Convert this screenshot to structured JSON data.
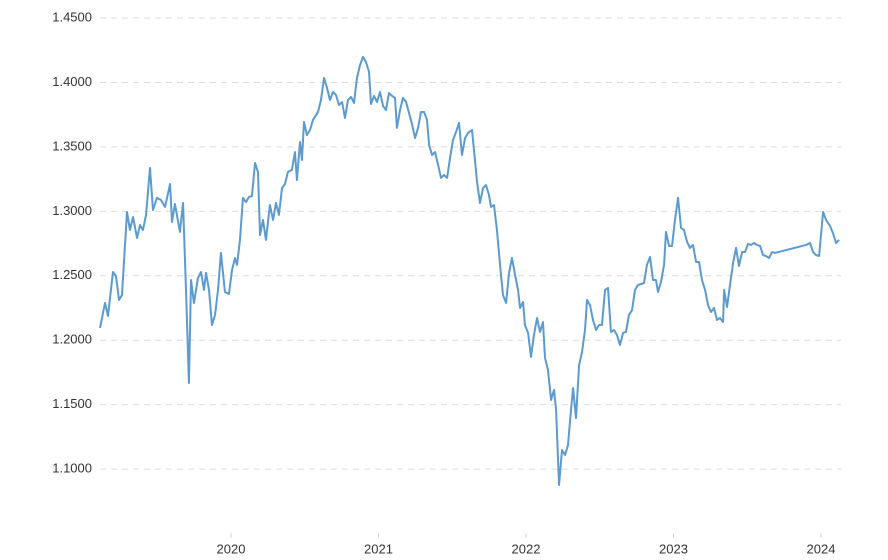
{
  "chart_data": {
    "type": "line",
    "xlim": [
      2019.112,
      2024.122
    ],
    "xticks": [
      2020,
      2021,
      2022,
      2023,
      2024
    ],
    "ylim": [
      1.05,
      1.45
    ],
    "yticks": [
      {
        "value": 1.1,
        "label": "1.1000"
      },
      {
        "value": 1.15,
        "label": "1.1500"
      },
      {
        "value": 1.2,
        "label": "1.2000"
      },
      {
        "value": 1.25,
        "label": "1.2500"
      },
      {
        "value": 1.3,
        "label": "1.3000"
      },
      {
        "value": 1.35,
        "label": "1.3500"
      },
      {
        "value": 1.4,
        "label": "1.4000"
      },
      {
        "value": 1.45,
        "label": "1.4500"
      }
    ],
    "grid": true,
    "color": "#5b9bd0",
    "x": [
      2019.112,
      2019.146,
      2019.166,
      2019.2,
      2019.22,
      2019.241,
      2019.261,
      2019.295,
      2019.315,
      2019.336,
      2019.363,
      2019.383,
      2019.403,
      2019.424,
      2019.451,
      2019.471,
      2019.498,
      2019.525,
      2019.553,
      2019.587,
      2019.6,
      2019.62,
      2019.654,
      2019.675,
      2019.695,
      2019.715,
      2019.729,
      2019.749,
      2019.776,
      2019.797,
      2019.817,
      2019.831,
      2019.851,
      2019.871,
      2019.892,
      2019.912,
      2019.932,
      2019.959,
      2019.986,
      2020.007,
      2020.027,
      2020.041,
      2020.061,
      2020.081,
      2020.102,
      2020.122,
      2020.142,
      2020.163,
      2020.183,
      2020.197,
      2020.217,
      2020.237,
      2020.264,
      2020.285,
      2020.305,
      2020.325,
      2020.346,
      2020.366,
      2020.386,
      2020.413,
      2020.434,
      2020.447,
      2020.468,
      2020.481,
      2020.495,
      2020.515,
      2020.536,
      2020.556,
      2020.59,
      2020.61,
      2020.631,
      2020.651,
      2020.671,
      2020.692,
      2020.712,
      2020.732,
      2020.753,
      2020.773,
      2020.793,
      2020.814,
      2020.834,
      2020.854,
      2020.875,
      2020.895,
      2020.915,
      2020.936,
      2020.949,
      2020.97,
      2020.99,
      2021.01,
      2021.031,
      2021.051,
      2021.071,
      2021.092,
      2021.112,
      2021.125,
      2021.146,
      2021.166,
      2021.187,
      2021.207,
      2021.227,
      2021.248,
      2021.268,
      2021.288,
      2021.309,
      2021.329,
      2021.343,
      2021.363,
      2021.383,
      2021.404,
      2021.424,
      2021.444,
      2021.465,
      2021.485,
      2021.505,
      2021.526,
      2021.546,
      2021.566,
      2021.587,
      2021.607,
      2021.634,
      2021.654,
      2021.668,
      2021.688,
      2021.709,
      2021.729,
      2021.749,
      2021.763,
      2021.783,
      2021.803,
      2021.824,
      2021.844,
      2021.865,
      2021.885,
      2021.905,
      2021.926,
      2021.946,
      2021.96,
      2021.98,
      2021.993,
      2022.014,
      2022.034,
      2022.054,
      2022.075,
      2022.095,
      2022.115,
      2022.129,
      2022.149,
      2022.17,
      2022.19,
      2022.204,
      2022.224,
      2022.244,
      2022.265,
      2022.285,
      2022.299,
      2022.319,
      2022.339,
      2022.36,
      2022.38,
      2022.4,
      2022.414,
      2022.434,
      2022.454,
      2022.475,
      2022.495,
      2022.515,
      2022.536,
      2022.556,
      2022.576,
      2022.597,
      2022.617,
      2022.637,
      2022.658,
      2022.678,
      2022.698,
      2022.719,
      2022.739,
      2022.759,
      2022.78,
      2022.8,
      2022.82,
      2022.841,
      2022.861,
      2022.881,
      2022.895,
      2022.915,
      2022.936,
      2022.949,
      2022.97,
      2022.99,
      2023.01,
      2023.031,
      2023.051,
      2023.071,
      2023.092,
      2023.112,
      2023.132,
      2023.153,
      2023.173,
      2023.193,
      2023.214,
      2023.234,
      2023.254,
      2023.275,
      2023.295,
      2023.315,
      2023.336,
      2023.343,
      2023.363,
      2023.383,
      2023.404,
      2023.424,
      2023.444,
      2023.465,
      2023.485,
      2023.505,
      2023.526,
      2023.546,
      2023.566,
      2023.587,
      2023.607,
      2023.627,
      2023.648,
      2023.668,
      2023.688,
      2023.899,
      2023.926,
      2023.946,
      2023.966,
      2023.987,
      2024.014,
      2024.034,
      2024.061,
      2024.081,
      2024.102,
      2024.122
    ],
    "values": [
      1.2095,
      1.2289,
      1.2188,
      1.2529,
      1.2498,
      1.2312,
      1.2351,
      1.2995,
      1.2855,
      1.2956,
      1.2793,
      1.2894,
      1.2855,
      1.2972,
      1.3336,
      1.301,
      1.3104,
      1.3088,
      1.3034,
      1.3212,
      1.2917,
      1.3057,
      1.284,
      1.3065,
      1.239,
      1.1668,
      1.2467,
      1.2289,
      1.2483,
      1.2529,
      1.239,
      1.2522,
      1.239,
      1.2118,
      1.2196,
      1.239,
      1.2677,
      1.2374,
      1.2359,
      1.2545,
      1.2638,
      1.2584,
      1.2778,
      1.3104,
      1.3072,
      1.3111,
      1.3119,
      1.3375,
      1.3305,
      1.2816,
      1.2933,
      1.2778,
      1.3049,
      1.2933,
      1.3065,
      1.2972,
      1.3181,
      1.3212,
      1.3305,
      1.3321,
      1.346,
      1.3243,
      1.3538,
      1.3398,
      1.3693,
      1.3592,
      1.3631,
      1.3709,
      1.3771,
      1.3864,
      1.4035,
      1.3957,
      1.3864,
      1.3926,
      1.3903,
      1.3825,
      1.3848,
      1.3724,
      1.3864,
      1.3887,
      1.3841,
      1.4035,
      1.4136,
      1.4198,
      1.4159,
      1.4081,
      1.3833,
      1.3895,
      1.3848,
      1.3926,
      1.3817,
      1.3786,
      1.3918,
      1.3895,
      1.388,
      1.3647,
      1.3786,
      1.388,
      1.3848,
      1.3763,
      1.3678,
      1.3569,
      1.3647,
      1.3771,
      1.3771,
      1.3709,
      1.3515,
      1.3437,
      1.346,
      1.336,
      1.3259,
      1.3282,
      1.3259,
      1.3414,
      1.3554,
      1.3616,
      1.3686,
      1.3437,
      1.3569,
      1.3608,
      1.3631,
      1.3398,
      1.3228,
      1.3065,
      1.3181,
      1.3204,
      1.3127,
      1.3034,
      1.3049,
      1.2855,
      1.2584,
      1.2351,
      1.2289,
      1.2522,
      1.2638,
      1.2506,
      1.239,
      1.225,
      1.2296,
      1.2118,
      1.2056,
      1.187,
      1.204,
      1.2172,
      1.2064,
      1.2141,
      1.1862,
      1.1769,
      1.1536,
      1.1614,
      1.1458,
      1.0876,
      1.1148,
      1.1109,
      1.1187,
      1.1381,
      1.1629,
      1.1396,
      1.1808,
      1.1908,
      1.2079,
      1.2312,
      1.2273,
      1.2157,
      1.2079,
      1.2118,
      1.2118,
      1.239,
      1.2405,
      1.2064,
      1.2079,
      1.204,
      1.1963,
      1.2056,
      1.2064,
      1.2196,
      1.2234,
      1.239,
      1.2428,
      1.2436,
      1.2444,
      1.2584,
      1.2646,
      1.2467,
      1.2467,
      1.2374,
      1.2452,
      1.2584,
      1.284,
      1.2731,
      1.2731,
      1.2933,
      1.3104,
      1.2871,
      1.2855,
      1.2762,
      1.2716,
      1.2739,
      1.2607,
      1.2607,
      1.2467,
      1.239,
      1.2273,
      1.2219,
      1.225,
      1.2157,
      1.2172,
      1.2141,
      1.239,
      1.2258,
      1.2428,
      1.2599,
      1.2716,
      1.2576,
      1.2684,
      1.2684,
      1.2747,
      1.2739,
      1.2754,
      1.2739,
      1.2731,
      1.2661,
      1.2653,
      1.2638,
      1.2684,
      1.2677,
      1.2739,
      1.2754,
      1.2684,
      1.2661,
      1.2653,
      1.2995,
      1.2933,
      1.2886,
      1.2832,
      1.2754,
      1.2778
    ]
  }
}
